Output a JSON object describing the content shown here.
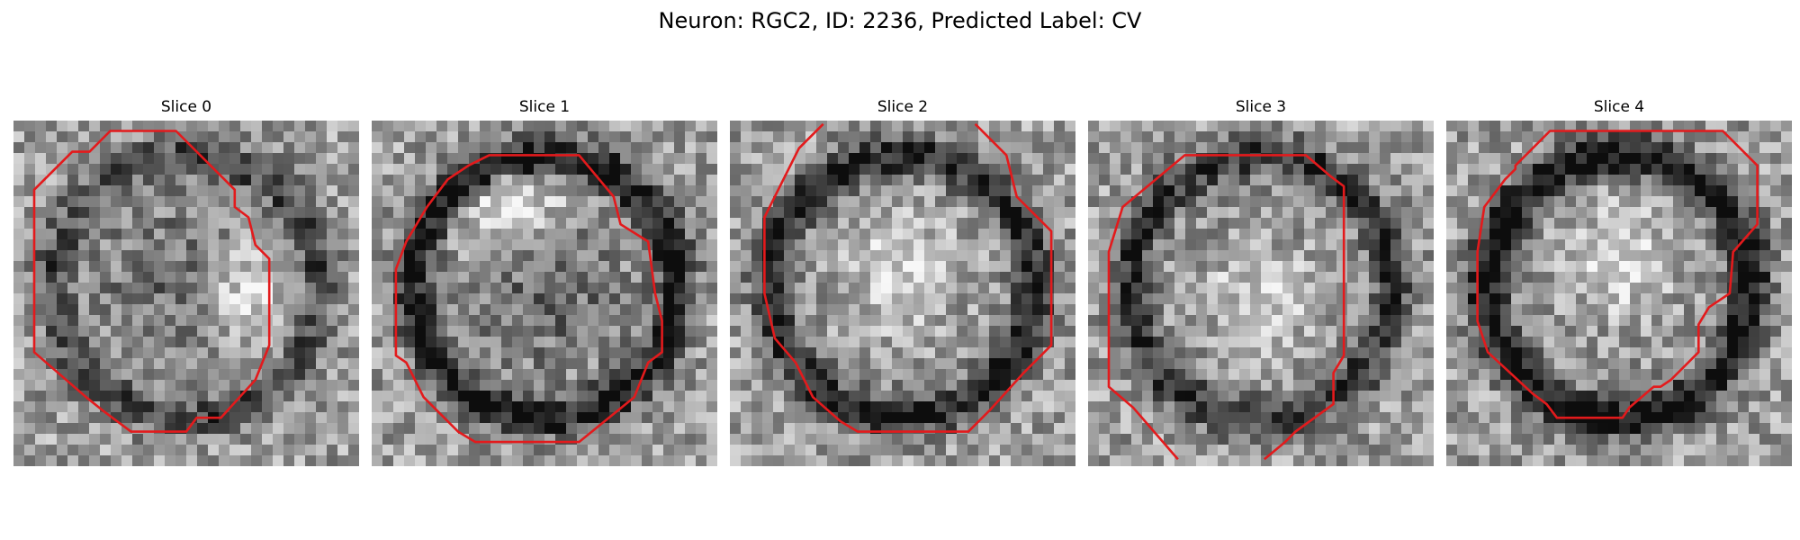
{
  "figure": {
    "title": "Neuron: RGC2, ID: 2236, Predicted Label: CV"
  },
  "contour_color": "#e31a1c",
  "panels": [
    {
      "title": "Slice 0",
      "seed": 11,
      "ring_darkness": 0.35,
      "interior_darkness": 0.4,
      "bright_spot": [
        0.65,
        0.5
      ],
      "contour": [
        [
          0.28,
          0.03
        ],
        [
          0.47,
          0.03
        ],
        [
          0.64,
          0.2
        ],
        [
          0.64,
          0.25
        ],
        [
          0.68,
          0.28
        ],
        [
          0.7,
          0.36
        ],
        [
          0.74,
          0.4
        ],
        [
          0.74,
          0.65
        ],
        [
          0.7,
          0.75
        ],
        [
          0.6,
          0.86
        ],
        [
          0.53,
          0.86
        ],
        [
          0.5,
          0.9
        ],
        [
          0.34,
          0.9
        ],
        [
          0.26,
          0.84
        ],
        [
          0.21,
          0.8
        ],
        [
          0.06,
          0.67
        ],
        [
          0.06,
          0.2
        ],
        [
          0.14,
          0.12
        ],
        [
          0.17,
          0.09
        ],
        [
          0.22,
          0.09
        ]
      ]
    },
    {
      "title": "Slice 1",
      "seed": 23,
      "ring_darkness": 0.55,
      "interior_darkness": 0.35,
      "bright_spot": [
        0.4,
        0.25
      ],
      "contour": [
        [
          0.34,
          0.1
        ],
        [
          0.6,
          0.1
        ],
        [
          0.7,
          0.22
        ],
        [
          0.72,
          0.3
        ],
        [
          0.8,
          0.35
        ],
        [
          0.82,
          0.5
        ],
        [
          0.84,
          0.58
        ],
        [
          0.84,
          0.67
        ],
        [
          0.8,
          0.7
        ],
        [
          0.76,
          0.8
        ],
        [
          0.6,
          0.93
        ],
        [
          0.3,
          0.93
        ],
        [
          0.25,
          0.9
        ],
        [
          0.15,
          0.8
        ],
        [
          0.1,
          0.7
        ],
        [
          0.07,
          0.68
        ],
        [
          0.07,
          0.43
        ],
        [
          0.1,
          0.35
        ],
        [
          0.16,
          0.25
        ],
        [
          0.22,
          0.17
        ],
        [
          0.28,
          0.13
        ]
      ]
    },
    {
      "title": "Slice 2",
      "seed": 37,
      "ring_darkness": 0.5,
      "interior_darkness": 0.15,
      "bright_spot": [
        0.5,
        0.45
      ],
      "contour_segments": [
        [
          [
            0.27,
            0.01
          ],
          [
            0.2,
            0.08
          ],
          [
            0.15,
            0.18
          ],
          [
            0.1,
            0.28
          ],
          [
            0.1,
            0.5
          ],
          [
            0.13,
            0.63
          ],
          [
            0.19,
            0.7
          ],
          [
            0.24,
            0.8
          ],
          [
            0.32,
            0.87
          ],
          [
            0.37,
            0.9
          ],
          [
            0.69,
            0.9
          ],
          [
            0.75,
            0.84
          ],
          [
            0.85,
            0.73
          ],
          [
            0.93,
            0.65
          ],
          [
            0.93,
            0.32
          ],
          [
            0.83,
            0.22
          ],
          [
            0.8,
            0.1
          ],
          [
            0.71,
            0.01
          ]
        ]
      ]
    },
    {
      "title": "Slice 3",
      "seed": 51,
      "ring_darkness": 0.45,
      "interior_darkness": 0.2,
      "bright_spot": [
        0.5,
        0.5
      ],
      "contour_segments": [
        [
          [
            0.26,
            0.98
          ],
          [
            0.13,
            0.83
          ],
          [
            0.06,
            0.77
          ],
          [
            0.06,
            0.38
          ],
          [
            0.1,
            0.25
          ],
          [
            0.28,
            0.1
          ],
          [
            0.63,
            0.1
          ],
          [
            0.7,
            0.16
          ],
          [
            0.74,
            0.19
          ],
          [
            0.74,
            0.68
          ],
          [
            0.71,
            0.73
          ],
          [
            0.71,
            0.82
          ],
          [
            0.6,
            0.9
          ],
          [
            0.57,
            0.93
          ],
          [
            0.51,
            0.98
          ]
        ]
      ]
    },
    {
      "title": "Slice 4",
      "seed": 67,
      "ring_darkness": 0.6,
      "interior_darkness": 0.15,
      "bright_spot": [
        0.5,
        0.42
      ],
      "contour": [
        [
          0.3,
          0.03
        ],
        [
          0.8,
          0.03
        ],
        [
          0.9,
          0.13
        ],
        [
          0.9,
          0.3
        ],
        [
          0.83,
          0.38
        ],
        [
          0.82,
          0.5
        ],
        [
          0.76,
          0.54
        ],
        [
          0.73,
          0.59
        ],
        [
          0.73,
          0.67
        ],
        [
          0.65,
          0.75
        ],
        [
          0.62,
          0.77
        ],
        [
          0.6,
          0.77
        ],
        [
          0.53,
          0.83
        ],
        [
          0.51,
          0.86
        ],
        [
          0.32,
          0.86
        ],
        [
          0.29,
          0.82
        ],
        [
          0.25,
          0.79
        ],
        [
          0.12,
          0.67
        ],
        [
          0.09,
          0.58
        ],
        [
          0.09,
          0.38
        ],
        [
          0.11,
          0.25
        ],
        [
          0.17,
          0.17
        ],
        [
          0.2,
          0.14
        ],
        [
          0.2,
          0.13
        ]
      ]
    }
  ]
}
